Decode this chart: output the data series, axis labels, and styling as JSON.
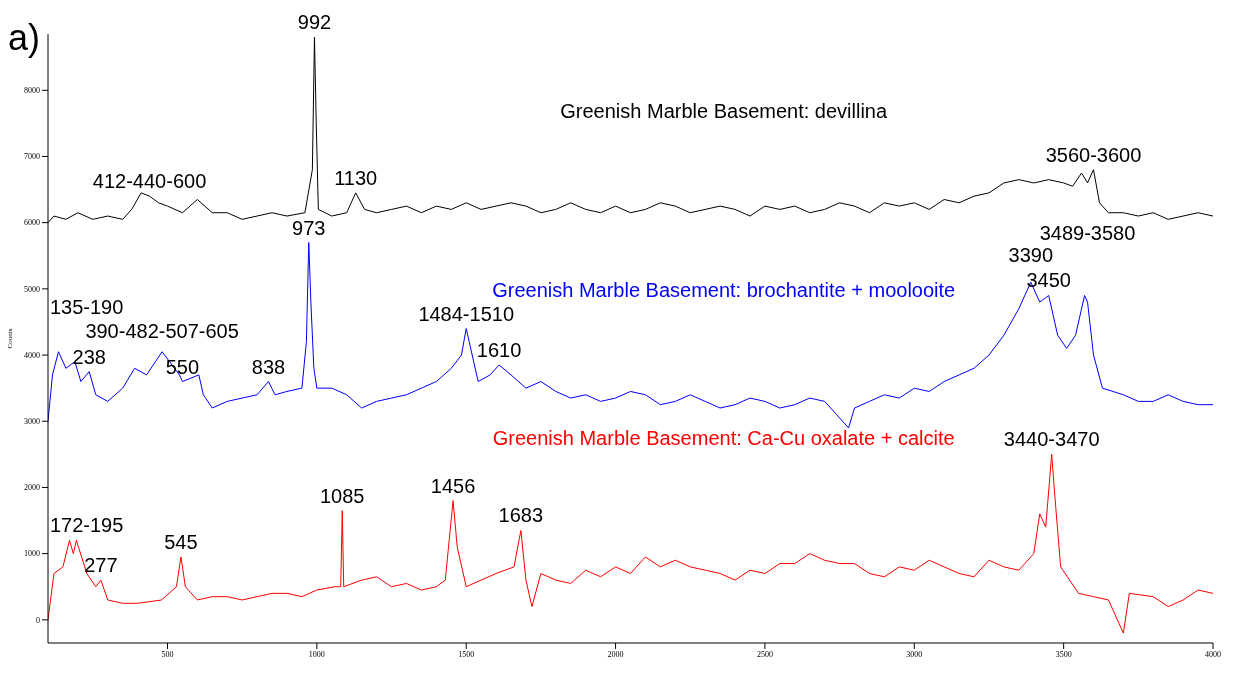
{
  "chart_data": {
    "type": "line",
    "ylabel": "Counts",
    "xlim": [
      100,
      4000
    ],
    "ylim": [
      -350,
      8850
    ],
    "xticks": [
      500,
      1000,
      1500,
      2000,
      2500,
      3000,
      3500,
      4000
    ],
    "yticks": [
      0,
      1000,
      2000,
      3000,
      4000,
      5000,
      6000,
      7000,
      8000
    ],
    "series": [
      {
        "name": "Greenish Marble Basement: devillina",
        "color": "#000000",
        "x": [
          100,
          120,
          160,
          200,
          250,
          300,
          350,
          380,
          412,
          440,
          470,
          500,
          550,
          600,
          650,
          700,
          750,
          800,
          850,
          900,
          960,
          985,
          992,
          998,
          1005,
          1050,
          1100,
          1130,
          1160,
          1200,
          1250,
          1300,
          1350,
          1400,
          1450,
          1500,
          1550,
          1600,
          1650,
          1700,
          1750,
          1800,
          1850,
          1900,
          1950,
          2000,
          2050,
          2100,
          2150,
          2200,
          2250,
          2300,
          2350,
          2400,
          2450,
          2500,
          2550,
          2600,
          2650,
          2700,
          2750,
          2800,
          2850,
          2900,
          2950,
          3000,
          3050,
          3100,
          3150,
          3200,
          3250,
          3300,
          3350,
          3400,
          3450,
          3500,
          3530,
          3560,
          3580,
          3600,
          3620,
          3650,
          3700,
          3750,
          3800,
          3850,
          3900,
          3950,
          4000
        ],
        "values": [
          6000,
          6100,
          6050,
          6150,
          6050,
          6100,
          6050,
          6200,
          6450,
          6400,
          6300,
          6250,
          6150,
          6350,
          6150,
          6150,
          6050,
          6100,
          6150,
          6100,
          6150,
          6800,
          8800,
          7500,
          6200,
          6100,
          6150,
          6450,
          6200,
          6150,
          6200,
          6250,
          6150,
          6250,
          6200,
          6300,
          6200,
          6250,
          6300,
          6250,
          6150,
          6200,
          6300,
          6200,
          6150,
          6250,
          6150,
          6200,
          6300,
          6250,
          6150,
          6200,
          6250,
          6200,
          6100,
          6250,
          6200,
          6250,
          6150,
          6200,
          6300,
          6250,
          6150,
          6300,
          6250,
          6300,
          6200,
          6350,
          6300,
          6400,
          6450,
          6600,
          6650,
          6600,
          6650,
          6600,
          6550,
          6750,
          6600,
          6800,
          6300,
          6150,
          6150,
          6100,
          6150,
          6050,
          6100,
          6150,
          6100
        ]
      },
      {
        "name": "Greenish Marble Basement: brochantite + moolooite",
        "color": "#0000ff",
        "x": [
          100,
          115,
          135,
          160,
          190,
          210,
          238,
          260,
          300,
          350,
          390,
          430,
          482,
          507,
          540,
          550,
          605,
          620,
          650,
          700,
          750,
          800,
          838,
          860,
          900,
          950,
          965,
          973,
          980,
          990,
          1000,
          1050,
          1100,
          1150,
          1200,
          1250,
          1300,
          1350,
          1400,
          1450,
          1484,
          1500,
          1510,
          1540,
          1580,
          1610,
          1650,
          1700,
          1750,
          1800,
          1850,
          1900,
          1950,
          2000,
          2050,
          2100,
          2150,
          2200,
          2250,
          2300,
          2350,
          2400,
          2450,
          2500,
          2550,
          2600,
          2650,
          2700,
          2740,
          2780,
          2800,
          2850,
          2900,
          2950,
          3000,
          3050,
          3100,
          3150,
          3200,
          3250,
          3300,
          3350,
          3390,
          3420,
          3450,
          3480,
          3510,
          3540,
          3570,
          3580,
          3600,
          3630,
          3700,
          3750,
          3800,
          3850,
          3900,
          3950,
          4000
        ],
        "values": [
          3000,
          3700,
          4050,
          3800,
          3900,
          3600,
          3750,
          3400,
          3300,
          3500,
          3800,
          3700,
          4050,
          3900,
          3700,
          3600,
          3700,
          3400,
          3200,
          3300,
          3350,
          3400,
          3600,
          3400,
          3450,
          3500,
          4200,
          5700,
          4800,
          3800,
          3500,
          3500,
          3400,
          3200,
          3300,
          3350,
          3400,
          3500,
          3600,
          3800,
          4000,
          4400,
          4200,
          3600,
          3700,
          3850,
          3700,
          3500,
          3600,
          3450,
          3350,
          3400,
          3300,
          3350,
          3450,
          3400,
          3250,
          3300,
          3400,
          3300,
          3200,
          3250,
          3350,
          3300,
          3200,
          3250,
          3350,
          3300,
          3100,
          2900,
          3200,
          3300,
          3400,
          3350,
          3500,
          3450,
          3600,
          3700,
          3800,
          4000,
          4300,
          4700,
          5100,
          4800,
          4900,
          4300,
          4100,
          4300,
          4900,
          4800,
          4000,
          3500,
          3400,
          3300,
          3300,
          3400,
          3300,
          3250,
          3250
        ]
      },
      {
        "name": "Greenish Marble Basement: Ca-Cu oxalate + calcite",
        "color": "#ff0000",
        "x": [
          100,
          120,
          150,
          172,
          185,
          195,
          230,
          260,
          277,
          300,
          350,
          400,
          480,
          530,
          545,
          560,
          600,
          650,
          700,
          750,
          800,
          850,
          900,
          950,
          1000,
          1060,
          1080,
          1085,
          1090,
          1150,
          1200,
          1250,
          1300,
          1350,
          1400,
          1430,
          1456,
          1470,
          1500,
          1550,
          1600,
          1660,
          1683,
          1700,
          1720,
          1750,
          1800,
          1850,
          1900,
          1950,
          2000,
          2050,
          2100,
          2150,
          2200,
          2250,
          2300,
          2350,
          2400,
          2450,
          2500,
          2550,
          2600,
          2650,
          2700,
          2750,
          2800,
          2850,
          2900,
          2950,
          3000,
          3050,
          3100,
          3150,
          3200,
          3250,
          3300,
          3350,
          3400,
          3420,
          3440,
          3460,
          3470,
          3490,
          3550,
          3600,
          3650,
          3700,
          3720,
          3800,
          3850,
          3900,
          3950,
          4000
        ],
        "values": [
          0,
          700,
          800,
          1200,
          1000,
          1200,
          700,
          500,
          600,
          300,
          250,
          250,
          300,
          500,
          950,
          500,
          300,
          350,
          350,
          300,
          350,
          400,
          400,
          350,
          450,
          500,
          500,
          1650,
          500,
          600,
          650,
          500,
          550,
          450,
          500,
          600,
          1800,
          1100,
          500,
          600,
          700,
          800,
          1350,
          600,
          200,
          700,
          600,
          550,
          750,
          650,
          800,
          700,
          950,
          800,
          900,
          800,
          750,
          700,
          600,
          750,
          700,
          850,
          850,
          1000,
          900,
          850,
          850,
          700,
          650,
          800,
          750,
          900,
          800,
          700,
          650,
          900,
          800,
          750,
          1000,
          1600,
          1400,
          2500,
          1900,
          800,
          400,
          350,
          300,
          -200,
          400,
          350,
          200,
          300,
          450,
          400
        ]
      }
    ],
    "annotations": [
      "a)",
      {
        "text": "992",
        "x": 992,
        "y": 8800
      },
      {
        "text": "412-440-600",
        "x": 440,
        "y": 6400
      },
      {
        "text": "1130",
        "x": 1130,
        "y": 6450
      },
      {
        "text": "3560-3600",
        "x": 3600,
        "y": 6800
      },
      {
        "text": "973",
        "x": 973,
        "y": 5700
      },
      {
        "text": "238",
        "x": 238,
        "y": 3750
      },
      {
        "text": "550",
        "x": 550,
        "y": 3600
      },
      {
        "text": "838",
        "x": 838,
        "y": 3600
      },
      {
        "text": "390-482-507-605",
        "x": 482,
        "y": 4050
      },
      {
        "text": "135-190",
        "x": 135,
        "y": 4050
      },
      {
        "text": "1484-1510",
        "x": 1500,
        "y": 4400
      },
      {
        "text": "1610",
        "x": 1610,
        "y": 3850
      },
      {
        "text": "3450",
        "x": 3450,
        "y": 4900
      },
      {
        "text": "3390",
        "x": 3390,
        "y": 5100
      },
      {
        "text": "3489-3580",
        "x": 3580,
        "y": 4800
      },
      {
        "text": "3440-3470",
        "x": 3460,
        "y": 2500
      },
      {
        "text": "277",
        "x": 277,
        "y": 600
      },
      {
        "text": "172-195",
        "x": 172,
        "y": 1200
      },
      {
        "text": "545",
        "x": 545,
        "y": 950
      },
      {
        "text": "1085",
        "x": 1085,
        "y": 1650
      },
      {
        "text": "1456",
        "x": 1456,
        "y": 1800
      },
      {
        "text": "1683",
        "x": 1683,
        "y": 1350
      }
    ]
  }
}
